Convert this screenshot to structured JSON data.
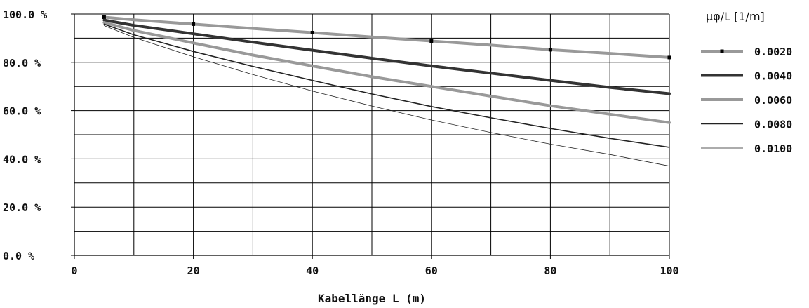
{
  "chart_data": {
    "type": "line",
    "title": "",
    "xlabel": "Kabellänge L (m)",
    "ylabel": "",
    "xlim": [
      0,
      100
    ],
    "ylim": [
      0,
      100
    ],
    "x_ticks": [
      "0",
      "20",
      "40",
      "60",
      "80",
      "100"
    ],
    "y_ticks": [
      "0.0 %",
      "20.0 %",
      "40.0 %",
      "60.0 %",
      "80.0 %",
      "100.0 %"
    ],
    "grid": true,
    "legend_title": "μφ/L [1/m]",
    "legend_position": "right",
    "x": [
      5,
      10,
      20,
      30,
      40,
      50,
      60,
      70,
      80,
      90,
      100
    ],
    "series": [
      {
        "name": "0.0020",
        "color": "#999999",
        "marker": "square",
        "marker_x": [
          5,
          20,
          40,
          60,
          80,
          100
        ],
        "values": [
          98.7,
          97.6,
          95.8,
          94.0,
          92.3,
          90.5,
          88.8,
          87.1,
          85.2,
          83.7,
          82.0
        ]
      },
      {
        "name": "0.0040",
        "color": "#333333",
        "values": [
          97.5,
          95.3,
          91.8,
          88.3,
          85.0,
          81.7,
          78.5,
          75.5,
          72.5,
          69.6,
          67.0
        ]
      },
      {
        "name": "0.0060",
        "color": "#999999",
        "values": [
          96.5,
          93.2,
          88.0,
          83.0,
          78.5,
          74.0,
          70.0,
          66.0,
          62.0,
          58.5,
          55.0
        ]
      },
      {
        "name": "0.0080",
        "color": "#222222",
        "values": [
          95.8,
          91.4,
          84.5,
          78.3,
          72.5,
          66.9,
          61.7,
          57.0,
          52.6,
          48.5,
          44.8
        ]
      },
      {
        "name": "0.0100",
        "color": "#222222",
        "values": [
          95.2,
          90.3,
          82.3,
          74.9,
          68.1,
          61.9,
          56.1,
          50.9,
          46.1,
          41.8,
          37.0
        ]
      }
    ]
  }
}
